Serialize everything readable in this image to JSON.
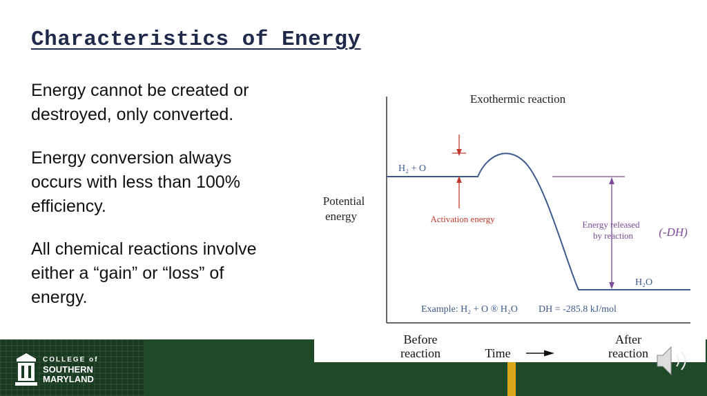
{
  "title": "Characteristics of Energy",
  "body": [
    [
      "Energy cannot be created or",
      "destroyed, only converted."
    ],
    [
      "Energy conversion always",
      "occurs with less than 100%",
      "efficiency."
    ],
    [
      "All chemical reactions involve",
      "either a “gain” or “loss” of",
      "energy."
    ]
  ],
  "diagram": {
    "title": "Exothermic reaction",
    "y_label": [
      "Potential",
      "energy"
    ],
    "reactants": "H₂ + O",
    "product": "H₂O",
    "activation": "Activation energy",
    "released": [
      "Energy released",
      "by reaction"
    ],
    "delta": "(-DH)",
    "example": "Example: H₂ + O ® H₂O",
    "example_dh": "DH = -285.8 kJ/mol",
    "before": [
      "Before",
      "reaction"
    ],
    "time": "Time",
    "after": [
      "After",
      "reaction"
    ]
  },
  "logo": {
    "line1": "COLLEGE of",
    "line2": "SOUTHERN",
    "line3": "MARYLAND"
  }
}
